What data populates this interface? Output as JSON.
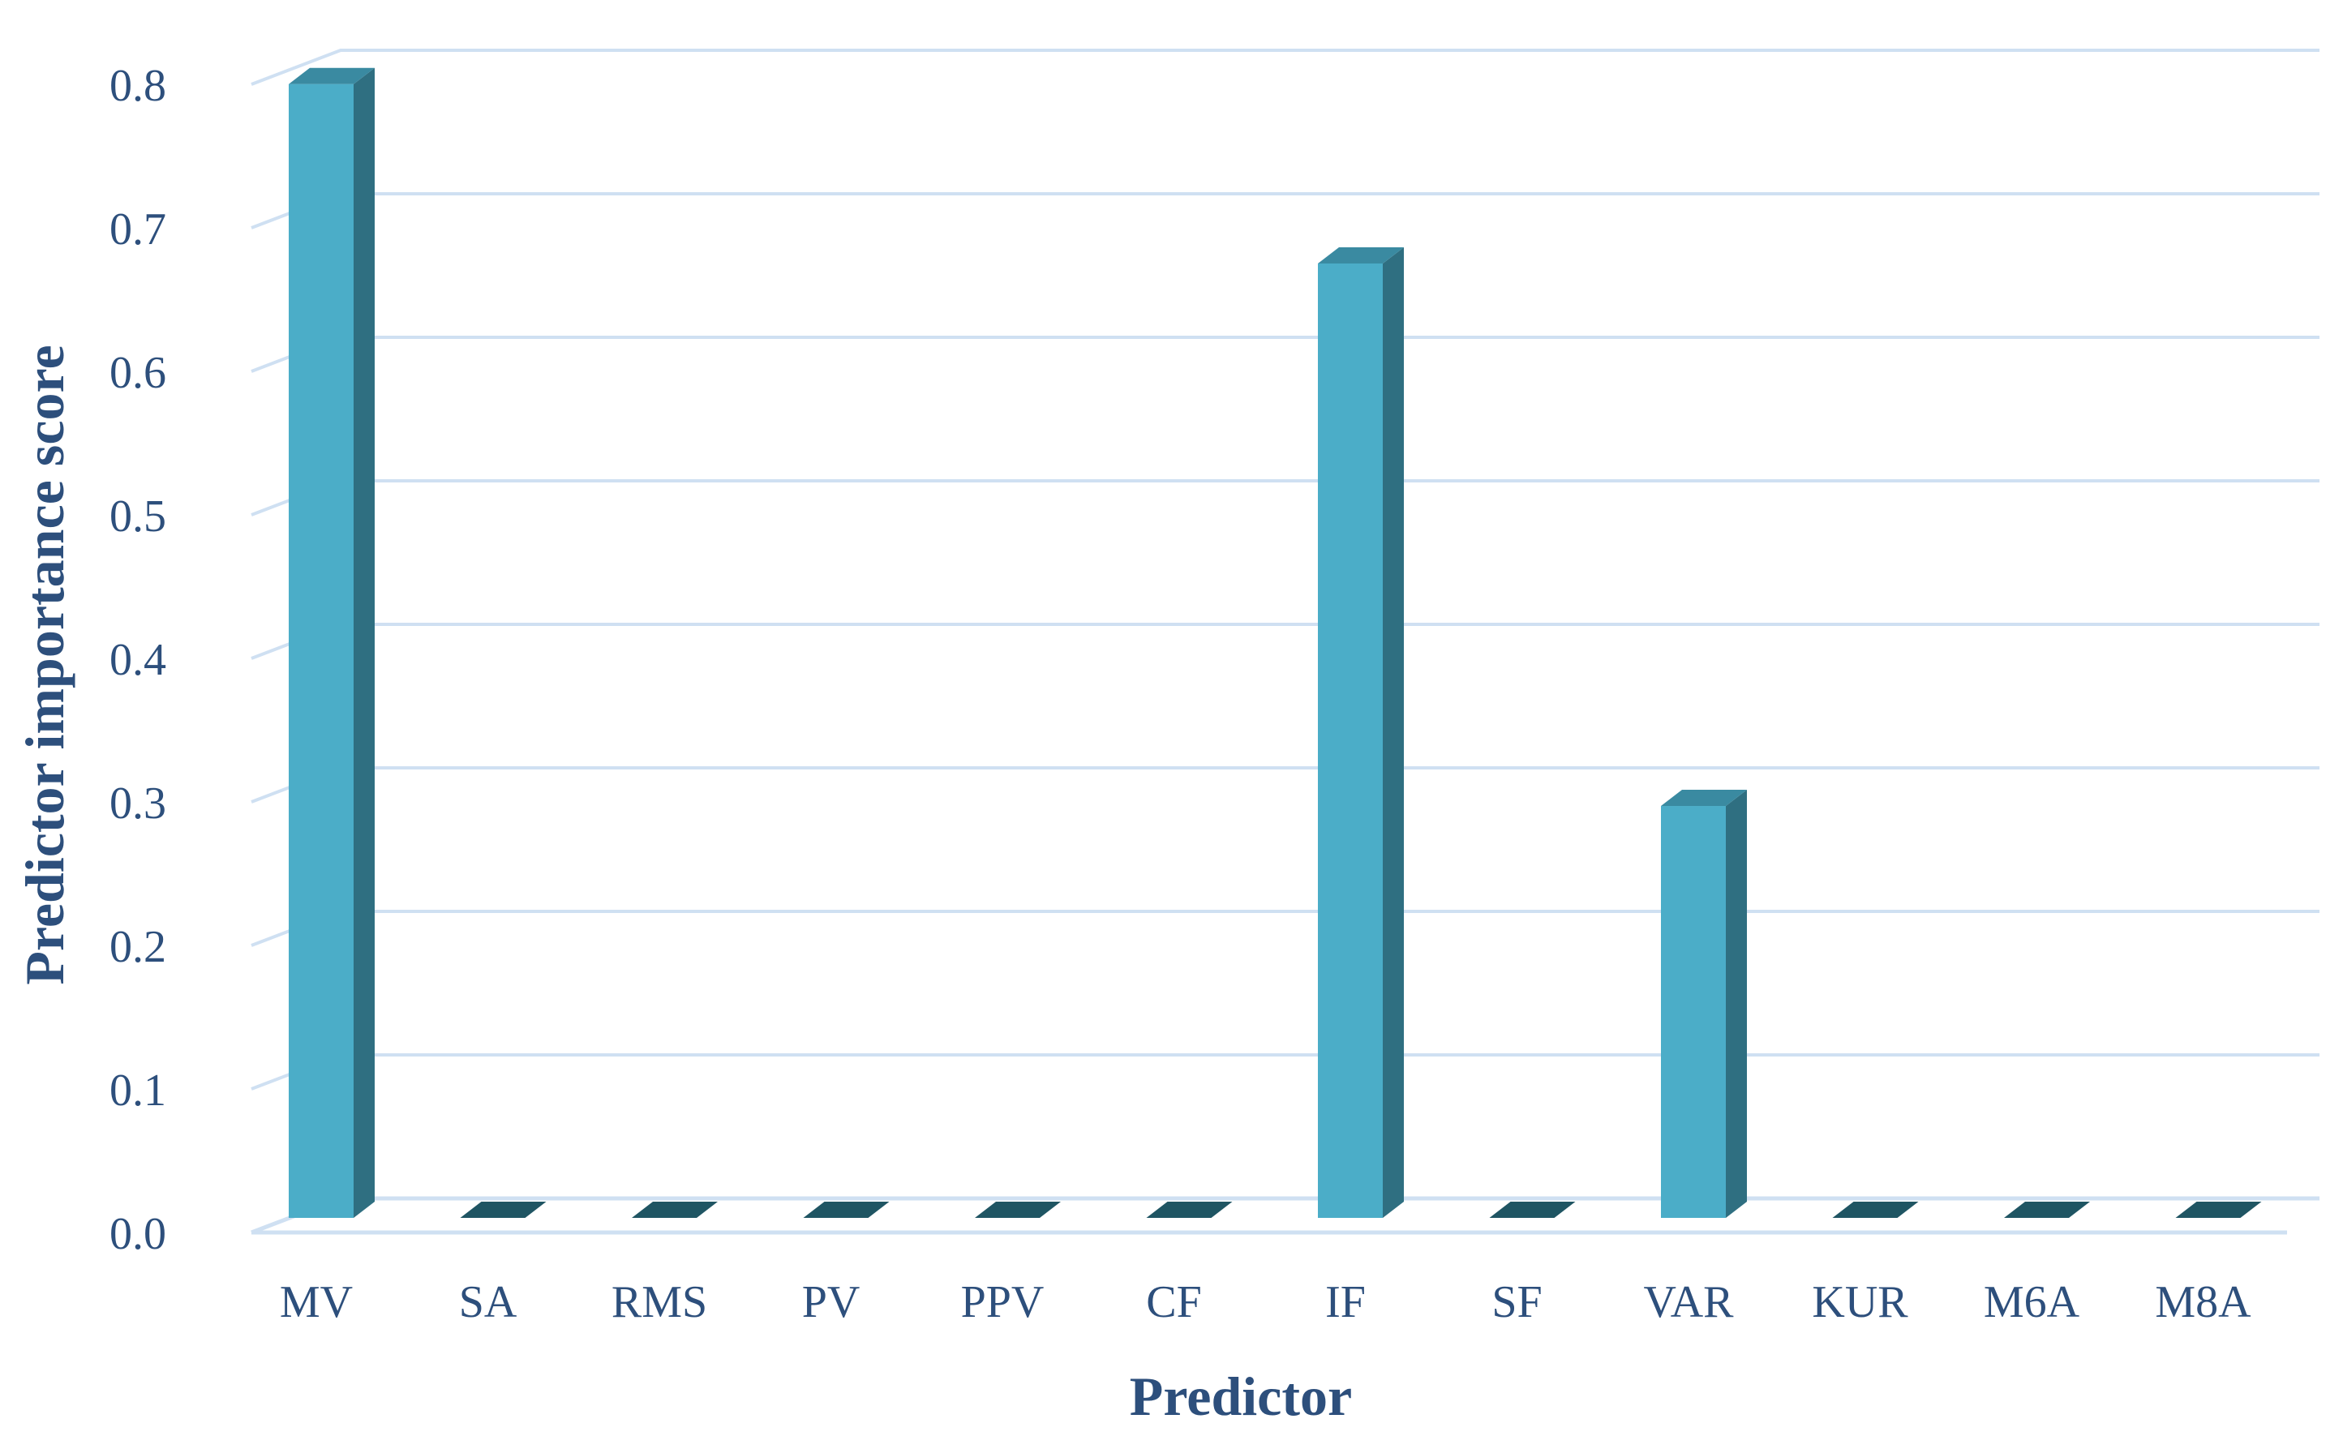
{
  "chart_data": {
    "type": "bar",
    "style": "3d-column",
    "categories": [
      "MV",
      "SA",
      "RMS",
      "PV",
      "PPV",
      "CF",
      "IF",
      "SF",
      "VAR",
      "KUR",
      "M6A",
      "M8A"
    ],
    "series": [
      {
        "values": [
          0.79,
          0.0,
          0.0,
          0.0,
          0.0,
          0.0,
          0.665,
          0.0,
          0.287,
          0.0,
          0.0,
          0.0
        ]
      }
    ],
    "xlabel": "Predictor",
    "ylabel": "Predictor importance score",
    "ylim": [
      0,
      0.8
    ],
    "yticks": [
      "0.0",
      "0.1",
      "0.2",
      "0.3",
      "0.4",
      "0.5",
      "0.6",
      "0.7",
      "0.8"
    ],
    "grid": true,
    "legend": "none",
    "colors": {
      "bar_front": "#4badc8",
      "bar_side": "#2f6f81",
      "bar_top": "#3a8aa1",
      "zero_bar": "#1f5563",
      "gridline": "#cfe0f2",
      "text": "#2d4f7c"
    }
  }
}
